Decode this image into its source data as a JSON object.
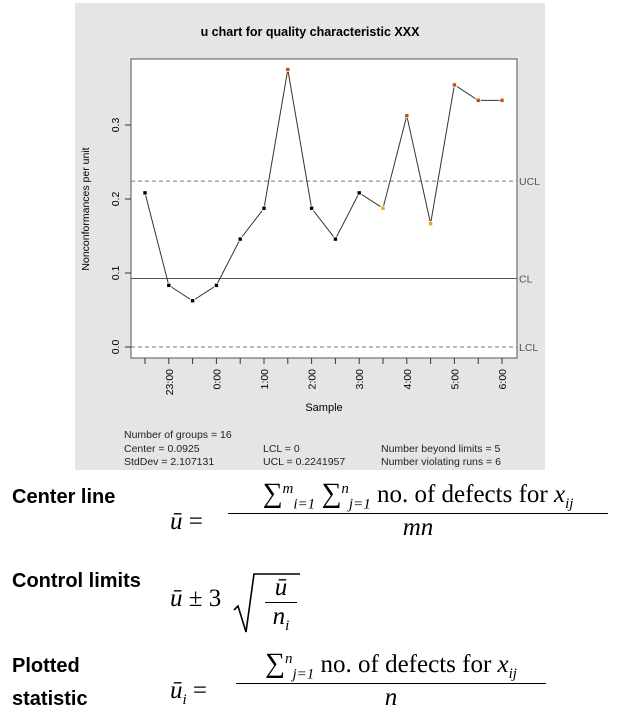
{
  "chart_data": {
    "type": "line",
    "title": "u chart for quality characteristic XXX",
    "xlabel": "Sample",
    "ylabel": "Nonconformances per unit",
    "ylim": [
      -0.015,
      0.39
    ],
    "yticks": [
      "0.0",
      "0.1",
      "0.2",
      "0.3"
    ],
    "ytick_values": [
      0,
      0.1,
      0.2,
      0.3
    ],
    "xtick_labels": [
      "",
      "23:00",
      "",
      "0:00",
      "",
      "1:00",
      "",
      "2:00",
      "",
      "3:00",
      "",
      "4:00",
      "",
      "5:00",
      "",
      "6:00"
    ],
    "values": [
      0.2083,
      0.0833,
      0.0625,
      0.0833,
      0.1458,
      0.1875,
      0.375,
      0.1875,
      0.1458,
      0.2083,
      0.1875,
      0.3125,
      0.1667,
      0.3542,
      0.3333,
      0.3333
    ],
    "point_status": [
      "ok",
      "ok",
      "ok",
      "ok",
      "ok",
      "ok",
      "beyond",
      "ok",
      "ok",
      "ok",
      "run",
      "beyond",
      "run",
      "beyond",
      "beyond",
      "beyond"
    ],
    "lines": {
      "UCL": 0.2241957,
      "CL": 0.0925,
      "LCL": 0
    },
    "line_labels": {
      "UCL": "UCL",
      "CL": "CL",
      "LCL": "LCL"
    },
    "stats": {
      "groups": "Number of groups = 16",
      "center": "Center = 0.0925",
      "stddev": "StdDev = 2.107131",
      "lcl": "LCL = 0",
      "ucl": "UCL = 0.2241957",
      "beyond": "Number beyond limits = 5",
      "runs": "Number violating runs = 6"
    },
    "colors": {
      "ok": "#000000",
      "beyond": "#d04a00",
      "run": "#f0a020",
      "background": "#e5e5e5"
    }
  },
  "formulas": {
    "center_label": "Center line",
    "control_label": "Control limits",
    "plotted_label_1": "Plotted",
    "plotted_label_2": "statistic",
    "ubar": "ū",
    "eq": "=",
    "sigma": "∑",
    "i1": "i=1",
    "j1": "j=1",
    "m": "m",
    "n": "n",
    "defects_text": "no. of defects for",
    "x": "x",
    "ij": "ij",
    "mn": "mn",
    "pm3": "± 3",
    "ni": "n",
    "i": "i"
  }
}
